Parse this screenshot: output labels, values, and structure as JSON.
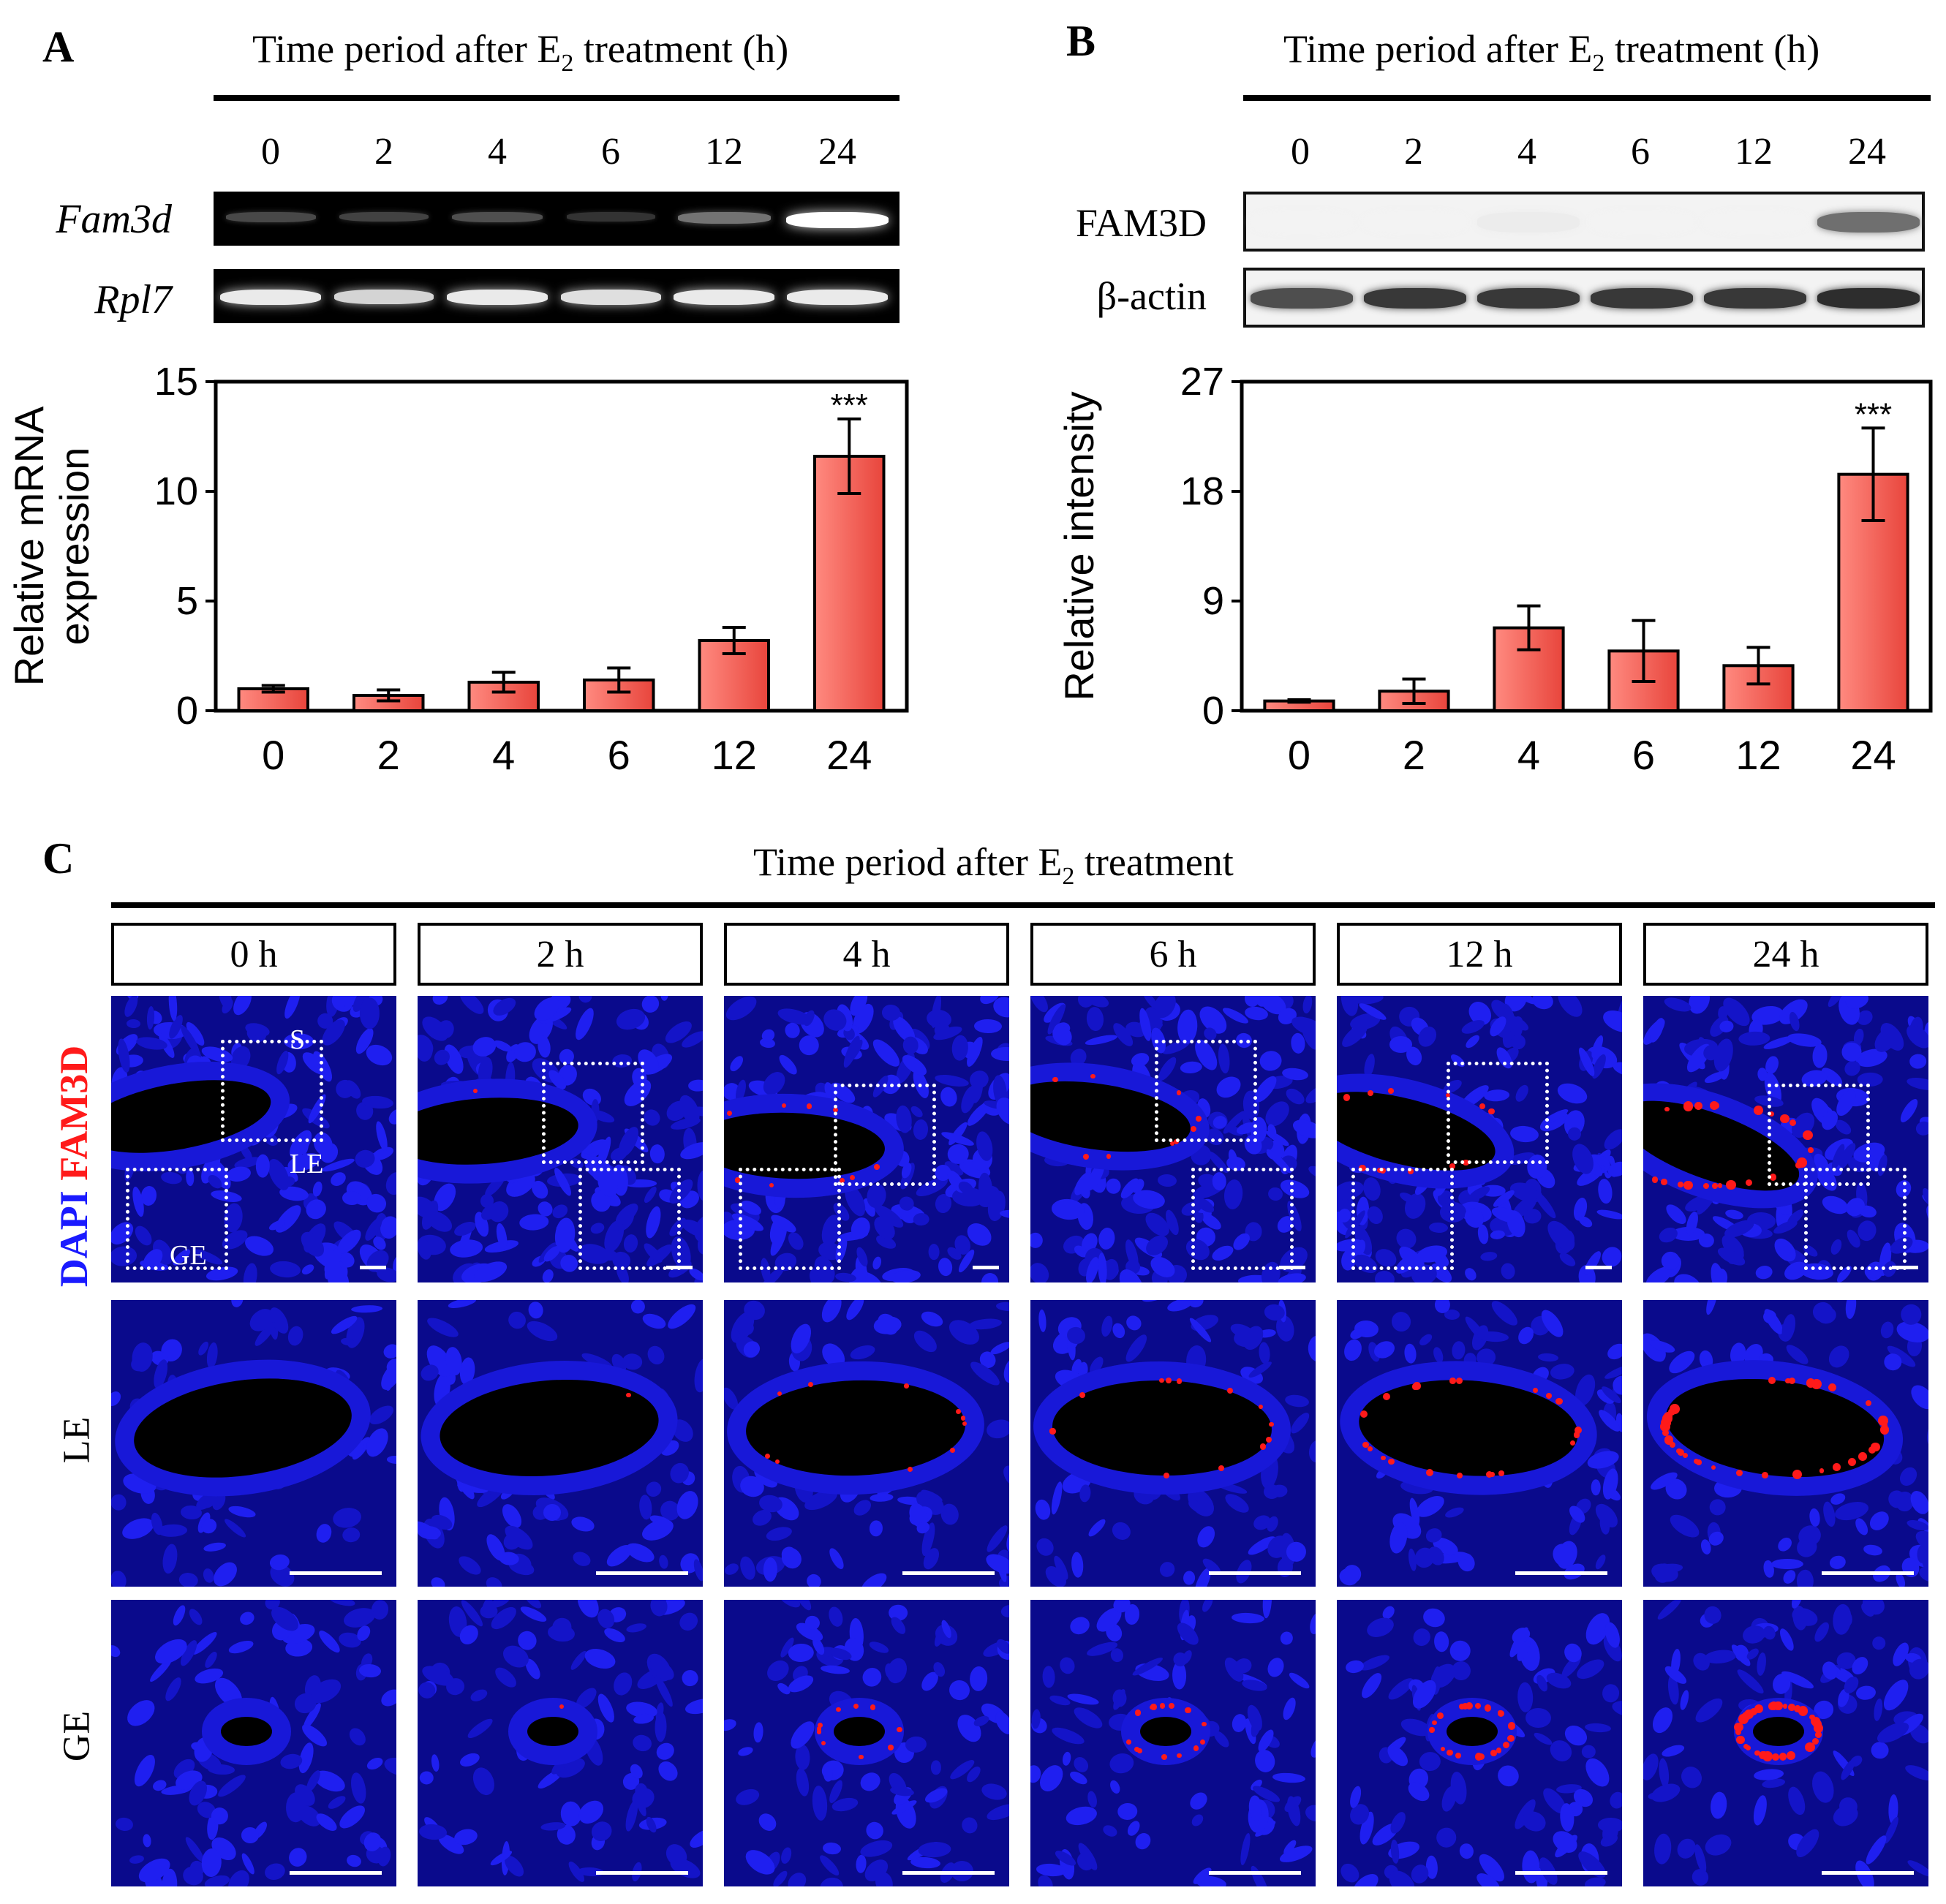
{
  "panels": {
    "a": {
      "letter": "A",
      "title_prefix": "Time period after E",
      "title_sub": "2",
      "title_suffix": " treatment (h)",
      "lanes": [
        "0",
        "2",
        "4",
        "6",
        "12",
        "24"
      ],
      "genes": [
        {
          "name": "Fam3d",
          "band_intensity": [
            0.15,
            0.12,
            0.18,
            0.05,
            0.35,
            1.0
          ]
        },
        {
          "name": "Rpl7",
          "band_intensity": [
            0.9,
            0.8,
            0.9,
            0.85,
            0.9,
            0.9
          ]
        }
      ]
    },
    "b": {
      "letter": "B",
      "title_prefix": "Time period after E",
      "title_sub": "2",
      "title_suffix": " treatment (h)",
      "lanes": [
        "0",
        "2",
        "4",
        "6",
        "12",
        "24"
      ],
      "proteins": [
        {
          "name": "FAM3D",
          "band_intensity": [
            0.0,
            0.0,
            0.03,
            0.0,
            0.0,
            0.6
          ]
        },
        {
          "name": "β-actin",
          "band_intensity": [
            0.75,
            0.85,
            0.85,
            0.85,
            0.85,
            0.9
          ]
        }
      ]
    },
    "c": {
      "letter": "C",
      "title_prefix": "Time period after E",
      "title_sub": "2",
      "title_suffix": " treatment",
      "time_points": [
        "0 h",
        "2 h",
        "4 h",
        "6 h",
        "12 h",
        "24 h"
      ],
      "channel_label_blue": "DAPI",
      "channel_label_red": "FAM3D",
      "row_labels": [
        "LE",
        "GE"
      ],
      "region_labels": {
        "stroma": "S",
        "luminal": "LE",
        "glandular": "GE"
      },
      "fam3d_signal": [
        0.0,
        0.02,
        0.25,
        0.35,
        0.55,
        1.0
      ]
    }
  },
  "chart_data": [
    {
      "type": "bar",
      "panel": "A",
      "categories": [
        "0",
        "2",
        "4",
        "6",
        "12",
        "24"
      ],
      "values": [
        1.0,
        0.7,
        1.3,
        1.4,
        3.2,
        11.6
      ],
      "errors": [
        0.15,
        0.25,
        0.45,
        0.55,
        0.6,
        1.7
      ],
      "significance": [
        "",
        "",
        "",
        "",
        "",
        "***"
      ],
      "ylabel": [
        "Relative mRNA",
        "expression"
      ],
      "xlabel": "",
      "ylim": [
        0,
        15
      ],
      "yticks": [
        0,
        5,
        10,
        15
      ],
      "bar_color": "#e8453c"
    },
    {
      "type": "bar",
      "panel": "B",
      "categories": [
        "0",
        "2",
        "4",
        "6",
        "12",
        "24"
      ],
      "values": [
        0.8,
        1.6,
        6.8,
        4.9,
        3.7,
        19.4
      ],
      "errors": [
        0.1,
        1.0,
        1.8,
        2.5,
        1.5,
        3.8
      ],
      "significance": [
        "",
        "",
        "",
        "",
        "",
        "***"
      ],
      "ylabel": [
        "Relative intensity"
      ],
      "xlabel": "",
      "ylim": [
        0,
        27
      ],
      "yticks": [
        0,
        9,
        18,
        27
      ],
      "bar_color": "#e8453c"
    }
  ]
}
